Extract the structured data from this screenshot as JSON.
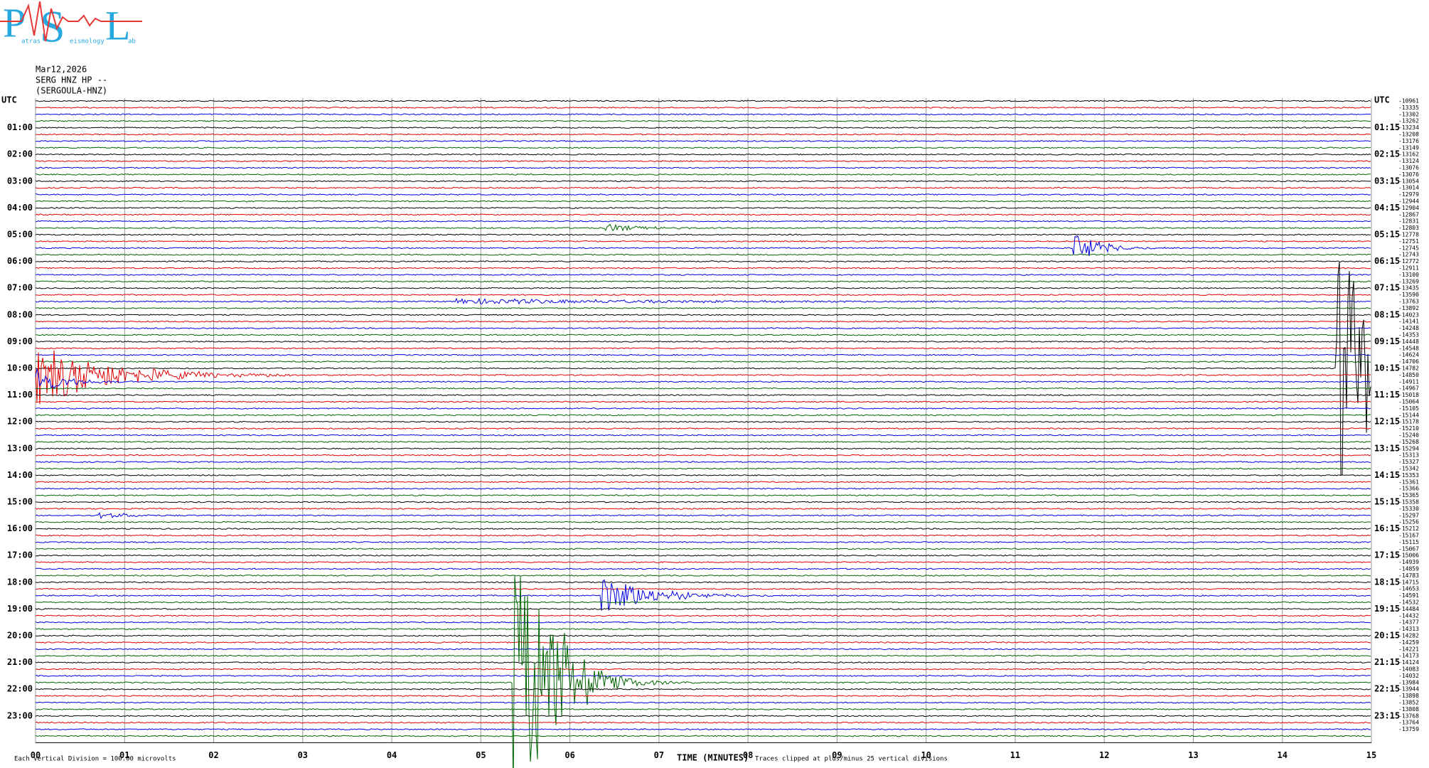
{
  "logo": {
    "letters": [
      "P",
      "S",
      "L"
    ],
    "small": [
      "atras",
      "eismology",
      "ab"
    ]
  },
  "header": {
    "date": "Mar12,2026",
    "station": "SERG HNZ HP --",
    "site": "(SERGOULA-HNZ)"
  },
  "left_labels": [
    "UTC",
    "01:00",
    "02:00",
    "03:00",
    "04:00",
    "05:00",
    "06:00",
    "07:00",
    "08:00",
    "09:00",
    "10:00",
    "11:00",
    "12:00",
    "13:00",
    "14:00",
    "15:00",
    "16:00",
    "17:00",
    "18:00",
    "19:00",
    "20:00",
    "21:00",
    "22:00",
    "23:00"
  ],
  "right_labels": [
    "UTC",
    "01:15",
    "02:15",
    "03:15",
    "04:15",
    "05:15",
    "06:15",
    "07:15",
    "08:15",
    "09:15",
    "10:15",
    "11:15",
    "12:15",
    "13:15",
    "14:15",
    "15:15",
    "16:15",
    "17:15",
    "18:15",
    "19:15",
    "20:15",
    "21:15",
    "22:15",
    "23:15"
  ],
  "offsets": [
    "-10961",
    "-13335",
    "-13302",
    "-13262",
    "-13234",
    "-13208",
    "-13176",
    "-13149",
    "-13162",
    "-13124",
    "-13076",
    "-13076",
    "-13054",
    "-13014",
    "-12979",
    "-12944",
    "-12904",
    "-12867",
    "-12831",
    "-12803",
    "-12778",
    "-12751",
    "-12745",
    "-12743",
    "-12772",
    "-12911",
    "-13100",
    "-13269",
    "-13435",
    "-13590",
    "-13763",
    "-13892",
    "-14023",
    "-14141",
    "-14248",
    "-14353",
    "-14448",
    "-14548",
    "-14624",
    "-14706",
    "-14782",
    "-14850",
    "-14911",
    "-14967",
    "-15018",
    "-15064",
    "-15105",
    "-15144",
    "-15178",
    "-15210",
    "-15240",
    "-15268",
    "-15294",
    "-15313",
    "-15327",
    "-15342",
    "-15353",
    "-15361",
    "-15366",
    "-15365",
    "-15358",
    "-15330",
    "-15297",
    "-15256",
    "-15212",
    "-15167",
    "-15115",
    "-15067",
    "-15006",
    "-14939",
    "-14859",
    "-14783",
    "-14715",
    "-14653",
    "-14591",
    "-14532",
    "-14484",
    "-14432",
    "-14377",
    "-14313",
    "-14282",
    "-14259",
    "-14221",
    "-14173",
    "-14124",
    "-14083",
    "-14032",
    "-13984",
    "-13944",
    "-13898",
    "-13852",
    "-13808",
    "-13768",
    "-13764",
    "-13759"
  ],
  "x_ticks": [
    "00",
    "01",
    "02",
    "03",
    "04",
    "05",
    "06",
    "07",
    "08",
    "09",
    "10",
    "11",
    "12",
    "13",
    "14",
    "15"
  ],
  "footer": {
    "division": "Each Vertical Division =  100.00 microvolts",
    "axis_title": "TIME (MINUTES)",
    "clip_note": "Traces clipped at plus/minus 25 vertical divisions"
  }
}
